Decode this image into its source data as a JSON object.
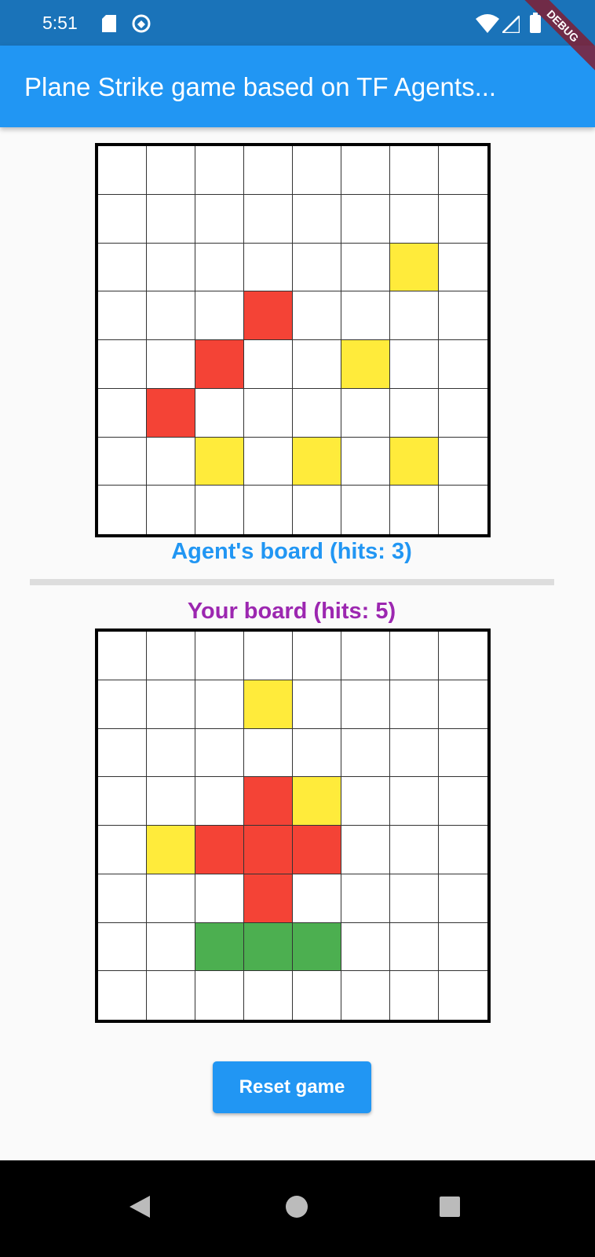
{
  "status_bar": {
    "time": "5:51",
    "icons": [
      "sd-card-icon",
      "data-saver-icon",
      "wifi-icon",
      "signal-icon",
      "battery-icon"
    ]
  },
  "debug_banner": "DEBUG",
  "app_bar": {
    "title": "Plane Strike game based on TF Agents..."
  },
  "colors": {
    "empty": "#ffffff",
    "miss": "#ffeb3b",
    "hit": "#f44336",
    "plane": "#4caf50",
    "agent_label": "#2196f3",
    "your_label": "#9c27b0"
  },
  "agent_board": {
    "label": "Agent's board (hits: 3)",
    "cells": [
      "........",
      "........",
      "......Y.",
      "...R....",
      "..R..Y..",
      ".R......",
      "..Y.Y.Y.",
      "........"
    ]
  },
  "your_board": {
    "label": "Your board (hits: 5)",
    "cells": [
      "........",
      "...Y....",
      "........",
      "...RY...",
      ".YRRR...",
      "...R....",
      "..GGG...",
      "........"
    ]
  },
  "reset_button": "Reset game",
  "nav_bar": {
    "buttons": [
      "back",
      "home",
      "recents"
    ]
  }
}
